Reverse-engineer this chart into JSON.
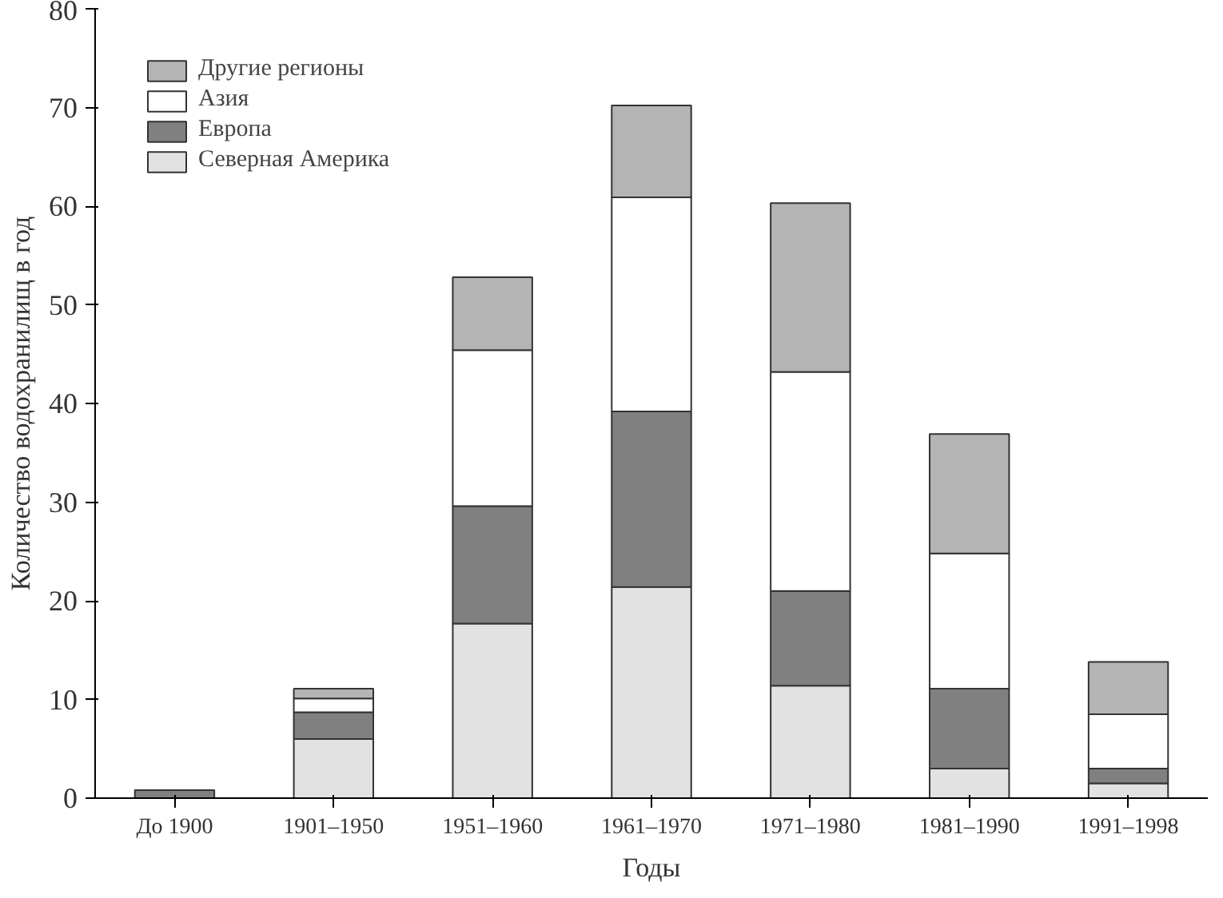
{
  "chart_data": {
    "type": "bar",
    "stacked": true,
    "xlabel": "Годы",
    "ylabel": "Количество водохранилищ в год",
    "categories": [
      "До 1900",
      "1901–1950",
      "1951–1960",
      "1961–1970",
      "1971–1980",
      "1981–1990",
      "1991–1998"
    ],
    "series": [
      {
        "name": "Северная Америка",
        "color": "#e2e2e2",
        "values": [
          0,
          6.0,
          17.7,
          21.4,
          11.4,
          3.0,
          1.5
        ]
      },
      {
        "name": "Европа",
        "color": "#808080",
        "values": [
          0.8,
          2.7,
          11.9,
          17.8,
          9.6,
          8.1,
          1.5
        ]
      },
      {
        "name": "Азия",
        "color": "#ffffff",
        "values": [
          0,
          1.4,
          15.8,
          21.7,
          22.2,
          13.7,
          5.5
        ]
      },
      {
        "name": "Другие регионы",
        "color": "#b4b4b4",
        "values": [
          0,
          1.0,
          7.4,
          9.3,
          17.1,
          12.1,
          5.3
        ]
      }
    ],
    "ylim": [
      0,
      80
    ],
    "yticks": [
      0,
      10,
      20,
      30,
      40,
      50,
      60,
      70,
      80
    ],
    "grid": false,
    "legend": "top left"
  }
}
